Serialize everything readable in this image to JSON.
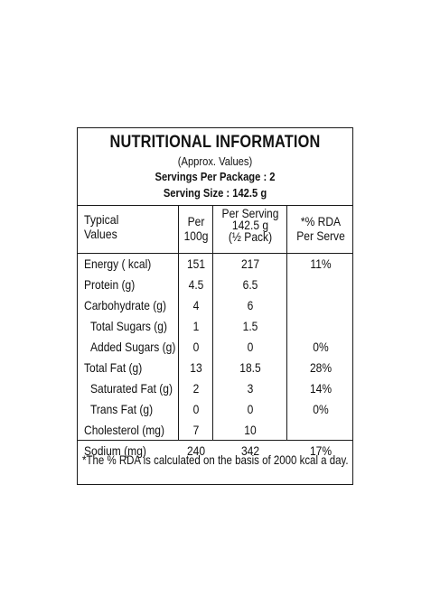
{
  "title": "NUTRITIONAL INFORMATION",
  "approx": "(Approx. Values)",
  "servings_per_package": "Servings Per Package : 2",
  "serving_size": "Serving Size : 142.5 g",
  "columns": {
    "typical": "Typical\nValues",
    "per100": "Per\n100g",
    "per_serving": "Per Serving\n142.5 g\n(½ Pack)",
    "rda": "*% RDA\nPer Serve"
  },
  "rows": [
    {
      "label": "Energy ( kcal)",
      "per100": "151",
      "serving": "217",
      "rda": "11%"
    },
    {
      "label": "Protein (g)",
      "per100": "4.5",
      "serving": "6.5",
      "rda": ""
    },
    {
      "label": "Carbohydrate (g)",
      "per100": "4",
      "serving": "6",
      "rda": ""
    },
    {
      "label": "Total Sugars (g)",
      "per100": "1",
      "serving": "1.5",
      "rda": ""
    },
    {
      "label": "Added Sugars (g)",
      "per100": "0",
      "serving": "0",
      "rda": "0%"
    },
    {
      "label": "Total Fat (g)",
      "per100": "13",
      "serving": "18.5",
      "rda": "28%"
    },
    {
      "label": "Saturated Fat (g)",
      "per100": "2",
      "serving": "3",
      "rda": "14%"
    },
    {
      "label": "Trans Fat (g)",
      "per100": "0",
      "serving": "0",
      "rda": "0%"
    },
    {
      "label": "Cholesterol (mg)",
      "per100": "7",
      "serving": "10",
      "rda": ""
    },
    {
      "label": "Sodium (mg)",
      "per100": "240",
      "serving": "342",
      "rda": "17%"
    }
  ],
  "footnote": "*The % RDA is calculated on the basis of 2000 kcal a day."
}
